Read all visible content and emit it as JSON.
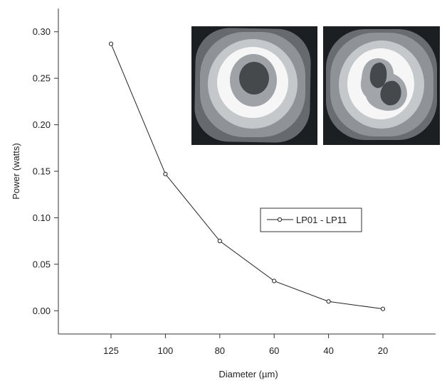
{
  "chart_data": {
    "type": "line",
    "title": "",
    "xlabel": "Diameter (µm)",
    "ylabel": "Power (watts)",
    "x_categories": [
      "125",
      "100",
      "80",
      "60",
      "40",
      "20"
    ],
    "x_order": "decreasing",
    "ylim": [
      -0.025,
      0.325
    ],
    "y_ticks": [
      "0.00",
      "0.05",
      "0.10",
      "0.15",
      "0.20",
      "0.25",
      "0.30"
    ],
    "grid": false,
    "legend_position": "center-right",
    "series": [
      {
        "name": "LP01 - LP11",
        "marker": "open-circle",
        "color": "#222222",
        "values": [
          0.287,
          0.147,
          0.075,
          0.032,
          0.01,
          0.002
        ]
      }
    ],
    "insets": [
      {
        "icon": "lp01-mode-intensity-profile"
      },
      {
        "icon": "lp11-mode-intensity-profile"
      }
    ]
  }
}
